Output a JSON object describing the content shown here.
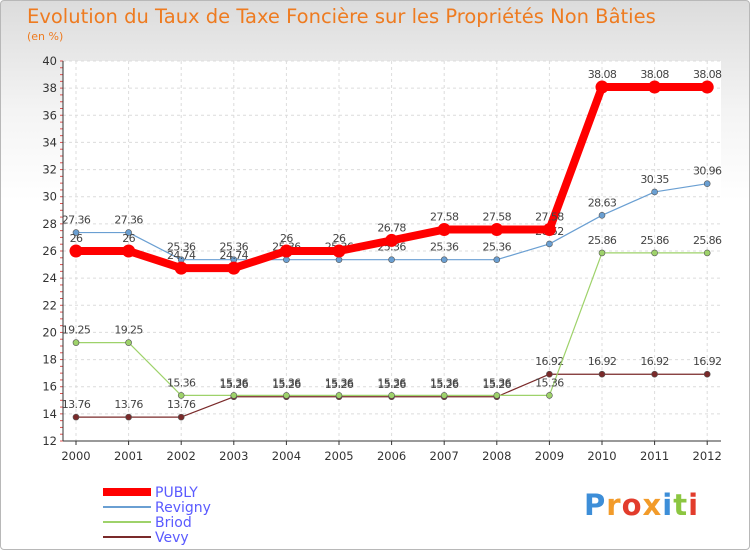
{
  "title": "Evolution du Taux de Taxe Foncière sur les Propriétés Non Bâties",
  "unit_label": "(en %)",
  "logo": {
    "letters": [
      "P",
      "r",
      "o",
      "x",
      "i",
      "t",
      "i"
    ],
    "colors": [
      "#3d8ed8",
      "#f29b2a",
      "#e23c2c",
      "#f29b2a",
      "#3d8ed8",
      "#8cc641",
      "#e23c2c"
    ]
  },
  "chart_data": {
    "type": "line",
    "categories": [
      "2000",
      "2001",
      "2002",
      "2003",
      "2004",
      "2005",
      "2006",
      "2007",
      "2008",
      "2009",
      "2010",
      "2011",
      "2012"
    ],
    "ylim": [
      12,
      40
    ],
    "yticks": [
      12,
      14,
      16,
      18,
      20,
      22,
      24,
      26,
      28,
      30,
      32,
      34,
      36,
      38,
      40
    ],
    "grid": true,
    "legend_position": "bottom-left",
    "series": [
      {
        "name": "Vevy",
        "color": "#7a2a2a",
        "values": [
          13.76,
          13.76,
          13.76,
          15.26,
          15.26,
          15.26,
          15.26,
          15.26,
          15.26,
          16.92,
          16.92,
          16.92,
          16.92
        ],
        "labels": [
          "13.76",
          "13.76",
          "13.76",
          "15.26",
          "15.26",
          "15.26",
          "15.26",
          "15.26",
          "15.26",
          "16.92",
          "16.92",
          "16.92",
          "16.92"
        ]
      },
      {
        "name": "Briod",
        "color": "#9ed26a",
        "values": [
          19.25,
          19.25,
          15.36,
          15.36,
          15.36,
          15.36,
          15.36,
          15.36,
          15.36,
          15.36,
          25.86,
          25.86,
          25.86
        ],
        "labels": [
          "19.25",
          "19.25",
          "15.36",
          "15.36",
          "15.36",
          "15.36",
          "15.36",
          "15.36",
          "15.36",
          "15.36",
          "25.86",
          "25.86",
          "25.86"
        ]
      },
      {
        "name": "Revigny",
        "color": "#6a9fd2",
        "values": [
          27.36,
          27.36,
          25.36,
          25.36,
          25.36,
          25.36,
          25.36,
          25.36,
          25.36,
          26.52,
          28.63,
          30.35,
          30.96
        ],
        "labels": [
          "27.36",
          "27.36",
          "25.36",
          "25.36",
          "25.36",
          "25.36",
          "25.36",
          "25.36",
          "25.36",
          "26.52",
          "28.63",
          "30.35",
          "30.96"
        ]
      },
      {
        "name": "PUBLY",
        "color": "#ff0000",
        "values": [
          26,
          26,
          24.74,
          24.74,
          26,
          26,
          26.78,
          27.58,
          27.58,
          27.58,
          38.08,
          38.08,
          38.08
        ],
        "labels": [
          "26",
          "26",
          "24.74",
          "24.74",
          "26",
          "26",
          "26.78",
          "27.58",
          "27.58",
          "27.58",
          "38.08",
          "38.08",
          "38.08"
        ]
      }
    ],
    "legend": [
      {
        "name": "PUBLY",
        "color": "#ff0000",
        "text_color": "#5a5aff"
      },
      {
        "name": "Revigny",
        "color": "#6a9fd2",
        "text_color": "#5a5aff"
      },
      {
        "name": "Briod",
        "color": "#9ed26a",
        "text_color": "#5a5aff"
      },
      {
        "name": "Vevy",
        "color": "#7a2a2a",
        "text_color": "#5a5aff"
      }
    ]
  }
}
